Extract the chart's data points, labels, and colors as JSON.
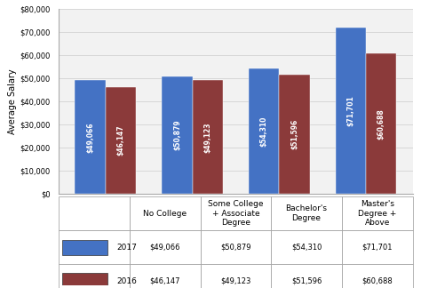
{
  "categories": [
    "No College",
    "Some College\n+ Associate\nDegree",
    "Bachelor's\nDegree",
    "Master's\nDegree +\nAbove"
  ],
  "values_2017": [
    49066,
    50879,
    54310,
    71701
  ],
  "values_2016": [
    46147,
    49123,
    51596,
    60688
  ],
  "labels_2017": [
    "$49,066",
    "$50,879",
    "$54,310",
    "$71,701"
  ],
  "labels_2016": [
    "$46,147",
    "$49,123",
    "$51,596",
    "$60,688"
  ],
  "color_2017": "#4472C4",
  "color_2016": "#8B3A3A",
  "ylabel": "Average Salary",
  "ylim": [
    0,
    80000
  ],
  "yticks": [
    0,
    10000,
    20000,
    30000,
    40000,
    50000,
    60000,
    70000,
    80000
  ],
  "ytick_labels": [
    "$0",
    "$10,000",
    "$20,000",
    "$30,000",
    "$40,000",
    "$50,000",
    "$60,000",
    "$70,000",
    "$80,000"
  ],
  "bar_width": 0.35,
  "background_color": "#FFFFFF",
  "table_2017": [
    "$49,066",
    "$50,879",
    "$54,310",
    "$71,701"
  ],
  "table_2016": [
    "$46,147",
    "$49,123",
    "$51,596",
    "$60,688"
  ],
  "legend_2017": "2017",
  "legend_2016": "2016"
}
